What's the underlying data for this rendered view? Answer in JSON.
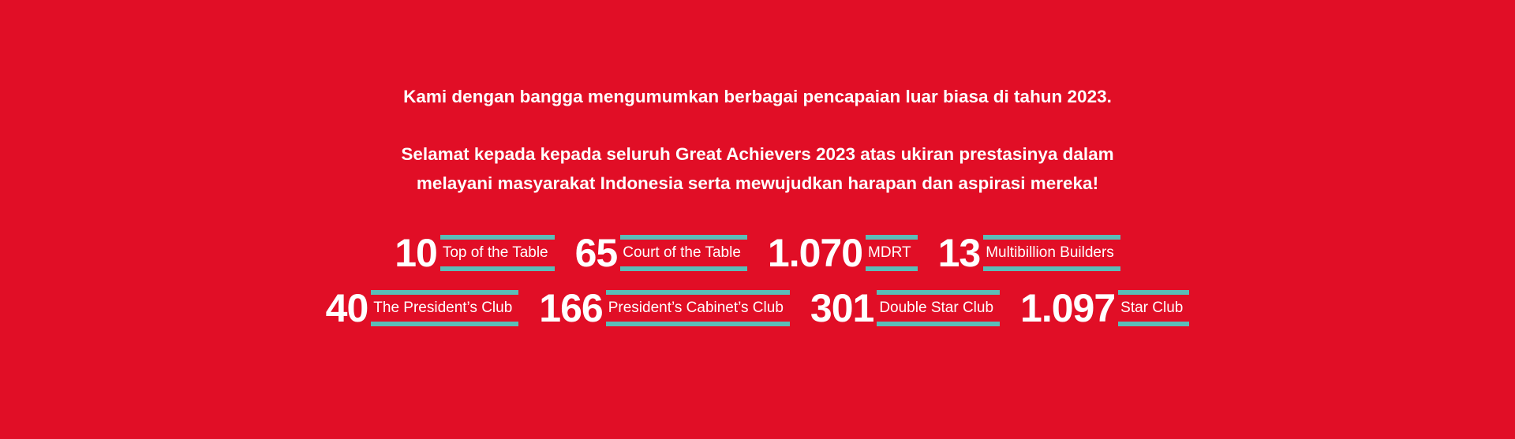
{
  "intro": {
    "line1": "Kami dengan bangga mengumumkan berbagai pencapaian luar biasa di tahun 2023.",
    "line2": "Selamat kepada kepada seluruh Great Achievers 2023 atas ukiran prestasinya dalam",
    "line3": "melayani masyarakat Indonesia serta mewujudkan harapan dan aspirasi mereka!"
  },
  "colors": {
    "background": "#E10E26",
    "accent": "#5BBDB8",
    "text": "#FFFFFF"
  },
  "rows": [
    [
      {
        "number": "10",
        "label": "Top of the Table"
      },
      {
        "number": "65",
        "label": "Court of the Table"
      },
      {
        "number": "1.070",
        "label": "MDRT"
      },
      {
        "number": "13",
        "label": "Multibillion Builders"
      }
    ],
    [
      {
        "number": "40",
        "label": "The President’s Club"
      },
      {
        "number": "166",
        "label": "President’s Cabinet’s Club"
      },
      {
        "number": "301",
        "label": "Double Star Club"
      },
      {
        "number": "1.097",
        "label": "Star Club"
      }
    ]
  ]
}
